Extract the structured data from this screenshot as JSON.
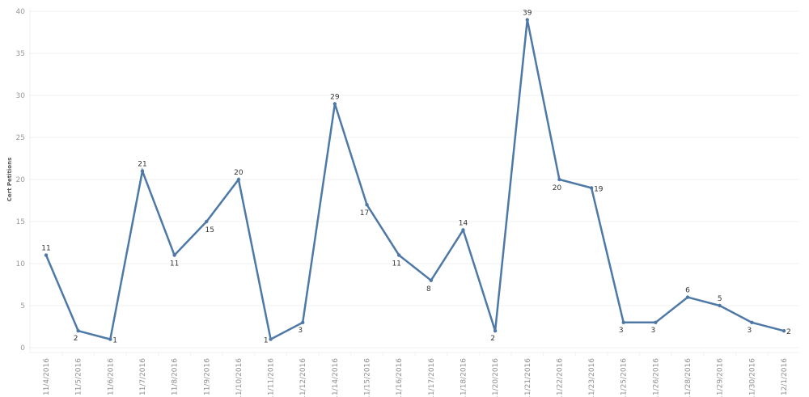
{
  "chart_data": {
    "type": "line",
    "title": "",
    "xlabel": "",
    "ylabel": "Cert Petitions",
    "ylim": [
      0,
      40
    ],
    "yticks": [
      0,
      5,
      10,
      15,
      20,
      25,
      30,
      35,
      40
    ],
    "grid": true,
    "legend": null,
    "categories": [
      "11/4/2016",
      "11/5/2016",
      "11/6/2016",
      "11/7/2016",
      "11/8/2016",
      "11/9/2016",
      "11/10/2016",
      "11/11/2016",
      "11/12/2016",
      "11/14/2016",
      "11/15/2016",
      "11/16/2016",
      "11/17/2016",
      "11/18/2016",
      "11/20/2016",
      "11/21/2016",
      "11/22/2016",
      "11/23/2016",
      "11/25/2016",
      "11/26/2016",
      "11/28/2016",
      "11/29/2016",
      "11/30/2016",
      "12/1/2016"
    ],
    "series": [
      {
        "name": "Cert Petitions",
        "color": "#4e79a7",
        "values": [
          11,
          2,
          1,
          21,
          11,
          15,
          20,
          1,
          3,
          29,
          17,
          11,
          8,
          14,
          2,
          39,
          20,
          19,
          3,
          3,
          6,
          5,
          3,
          2
        ],
        "label_positions": [
          "above",
          "below",
          "right",
          "above",
          "below",
          "below",
          "above",
          "left",
          "below",
          "above",
          "below",
          "below",
          "below",
          "above",
          "below",
          "above",
          "below",
          "right",
          "below",
          "below",
          "above",
          "above",
          "below",
          "right"
        ]
      }
    ]
  }
}
